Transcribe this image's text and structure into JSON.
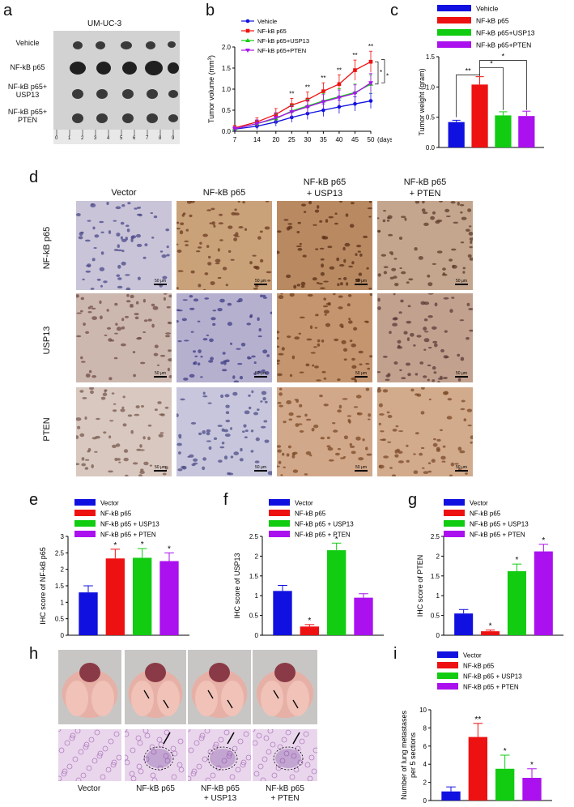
{
  "panel_letters": [
    "a",
    "b",
    "c",
    "d",
    "e",
    "f",
    "g",
    "h",
    "i"
  ],
  "panel_a": {
    "title": "UM-UC-3",
    "rows": [
      "Vehicle",
      "NF-kB p65",
      "NF-kB p65+\nUSP13",
      "NF-kB p65+\nPTEN"
    ],
    "ruler_numbers": [
      "0",
      "1",
      "2",
      "3",
      "4",
      "5",
      "6",
      "7",
      "8",
      "9"
    ]
  },
  "panel_d": {
    "columns": [
      "Vector",
      "NF-kB p65",
      "NF-kB p65\n+ USP13",
      "NF-kB p65\n+ PTEN"
    ],
    "rows": [
      "NF-kB p65",
      "USP13",
      "PTEN"
    ],
    "scale_label": "50 μm"
  },
  "panel_h": {
    "labels": [
      "Vector",
      "NF-kB p65",
      "NF-kB p65\n+ USP13",
      "NF-kB p65\n+ PTEN"
    ]
  },
  "colors": {
    "blue": "#1010e0",
    "red": "#ee1111",
    "green": "#11cc11",
    "purple": "#aa11ee"
  },
  "chart_data": [
    {
      "id": "b",
      "type": "line",
      "title": "",
      "xlabel": "(days)",
      "ylabel": "Tumor volume (mm3)",
      "x": [
        7,
        14,
        20,
        25,
        30,
        35,
        40,
        45,
        50
      ],
      "xlim": [
        7,
        50
      ],
      "ylim": [
        0,
        2.0
      ],
      "yticks": [
        0,
        0.5,
        1.0,
        1.5,
        2.0
      ],
      "series": [
        {
          "name": "Vehicle",
          "color": "#1010e0",
          "marker": "circle",
          "values": [
            0.05,
            0.12,
            0.22,
            0.33,
            0.42,
            0.5,
            0.58,
            0.65,
            0.72
          ],
          "err": [
            0.05,
            0.08,
            0.1,
            0.12,
            0.14,
            0.15,
            0.16,
            0.17,
            0.18
          ]
        },
        {
          "name": "NF-kB p65",
          "color": "#ee1111",
          "marker": "square",
          "values": [
            0.08,
            0.22,
            0.4,
            0.62,
            0.75,
            0.95,
            1.12,
            1.45,
            1.65
          ],
          "err": [
            0.06,
            0.1,
            0.14,
            0.16,
            0.18,
            0.2,
            0.22,
            0.24,
            0.25
          ]
        },
        {
          "name": "NF-kB p65+USP13",
          "color": "#11cc11",
          "marker": "triangle",
          "values": [
            0.06,
            0.18,
            0.3,
            0.48,
            0.6,
            0.72,
            0.82,
            0.92,
            1.12
          ],
          "err": [
            0.05,
            0.09,
            0.12,
            0.14,
            0.16,
            0.18,
            0.19,
            0.2,
            0.22
          ]
        },
        {
          "name": "NF-kB p65+PTEN",
          "color": "#aa11ee",
          "marker": "triangle-down",
          "values": [
            0.06,
            0.18,
            0.32,
            0.46,
            0.58,
            0.7,
            0.8,
            0.9,
            1.15
          ],
          "err": [
            0.05,
            0.09,
            0.12,
            0.14,
            0.16,
            0.17,
            0.18,
            0.2,
            0.22
          ]
        }
      ],
      "annotations": [
        "**",
        "**",
        "**",
        "**",
        "**",
        "**",
        "*",
        "*"
      ],
      "significance_x": [
        25,
        30,
        35,
        40,
        45,
        50
      ]
    },
    {
      "id": "c",
      "type": "bar",
      "ylabel": "Tumor weight (gram)",
      "ylim": [
        0,
        1.5
      ],
      "yticks": [
        0,
        0.5,
        1.0,
        1.5
      ],
      "categories": [
        "Vehicle",
        "NF-kB p65",
        "NF-kB p65+USP13",
        "NF-kB p65+PTEN"
      ],
      "values": [
        0.42,
        1.04,
        0.53,
        0.52
      ],
      "err": [
        0.03,
        0.13,
        0.06,
        0.08
      ],
      "colors": [
        "#1010e0",
        "#ee1111",
        "#11cc11",
        "#aa11ee"
      ],
      "annotations": [
        "**",
        "*",
        "*"
      ]
    },
    {
      "id": "e",
      "type": "bar",
      "ylabel": "IHC score of NF-kB p65",
      "ylim": [
        0,
        3
      ],
      "yticks": [
        0,
        0.5,
        1,
        1.5,
        2,
        2.5,
        3
      ],
      "categories": [
        "Vector",
        "NF-kB p65",
        "NF-kB p65 + USP13",
        "NF-kB p65 + PTEN"
      ],
      "values": [
        1.3,
        2.33,
        2.35,
        2.25
      ],
      "err": [
        0.2,
        0.28,
        0.28,
        0.25
      ],
      "star": [
        "",
        "*",
        "*",
        "*"
      ],
      "colors": [
        "#1010e0",
        "#ee1111",
        "#11cc11",
        "#aa11ee"
      ]
    },
    {
      "id": "f",
      "type": "bar",
      "ylabel": "IHC score of USP13",
      "ylim": [
        0,
        2.5
      ],
      "yticks": [
        0,
        0.5,
        1,
        1.5,
        2,
        2.5
      ],
      "categories": [
        "Vector",
        "NF-kB p65",
        "NF-kB p65 + USP13",
        "NF-kB p65 + PTEN"
      ],
      "values": [
        1.12,
        0.22,
        2.15,
        0.95
      ],
      "err": [
        0.14,
        0.05,
        0.18,
        0.1
      ],
      "star": [
        "",
        "*",
        "*",
        ""
      ],
      "colors": [
        "#1010e0",
        "#ee1111",
        "#11cc11",
        "#aa11ee"
      ]
    },
    {
      "id": "g",
      "type": "bar",
      "ylabel": "IHC score of PTEN",
      "ylim": [
        0,
        2.5
      ],
      "yticks": [
        0,
        0.5,
        1,
        1.5,
        2,
        2.5
      ],
      "categories": [
        "Vector",
        "NF-kB p65",
        "NF-kB p65 + USP13",
        "NF-kB p65 + PTEN"
      ],
      "values": [
        0.55,
        0.1,
        1.62,
        2.12
      ],
      "err": [
        0.1,
        0.03,
        0.18,
        0.18
      ],
      "star": [
        "",
        "*",
        "*",
        "*"
      ],
      "colors": [
        "#1010e0",
        "#ee1111",
        "#11cc11",
        "#aa11ee"
      ]
    },
    {
      "id": "i",
      "type": "bar",
      "ylabel": "Number of lung metastases\nper 5 sections",
      "ylim": [
        0,
        10
      ],
      "yticks": [
        0,
        2,
        4,
        6,
        8,
        10
      ],
      "categories": [
        "Vector",
        "NF-kB p65",
        "NF-kB p65 + USP13",
        "NF-kB p65 + PTEN"
      ],
      "values": [
        1.0,
        7.0,
        3.5,
        2.5
      ],
      "err": [
        0.5,
        1.5,
        1.5,
        1.0
      ],
      "star": [
        "",
        "**",
        "*",
        "*"
      ],
      "colors": [
        "#1010e0",
        "#ee1111",
        "#11cc11",
        "#aa11ee"
      ]
    }
  ]
}
